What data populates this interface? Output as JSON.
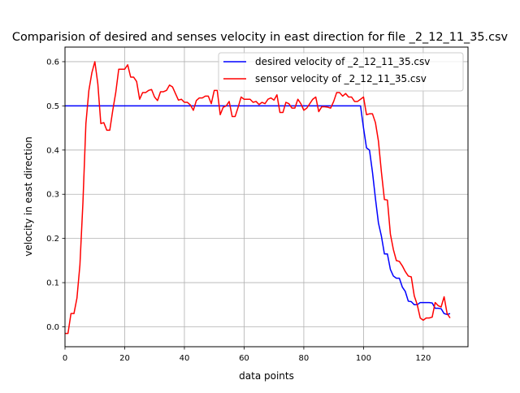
{
  "chart_data": {
    "type": "line",
    "title": "Comparision of desired and senses velocity in east direction for file _2_12_11_35.csv",
    "xlabel": "data points",
    "ylabel": "velocity in east direction",
    "xlim": [
      0,
      135
    ],
    "ylim": [
      -0.045,
      0.633
    ],
    "xticks": [
      0,
      20,
      40,
      60,
      80,
      100,
      120
    ],
    "yticks": [
      0.0,
      0.1,
      0.2,
      0.3,
      0.4,
      0.5,
      0.6
    ],
    "grid": true,
    "legend_position": "top-right",
    "series": [
      {
        "name": "desired velocity of _2_12_11_35.csv",
        "color": "#0000ff",
        "points": [
          [
            0,
            0.5
          ],
          [
            99,
            0.5
          ],
          [
            100,
            0.45
          ],
          [
            101,
            0.405
          ],
          [
            102,
            0.4
          ],
          [
            103,
            0.35
          ],
          [
            104,
            0.29
          ],
          [
            105,
            0.235
          ],
          [
            106,
            0.205
          ],
          [
            107,
            0.165
          ],
          [
            108,
            0.165
          ],
          [
            109,
            0.13
          ],
          [
            110,
            0.115
          ],
          [
            111,
            0.11
          ],
          [
            112,
            0.11
          ],
          [
            113,
            0.09
          ],
          [
            114,
            0.08
          ],
          [
            115,
            0.058
          ],
          [
            116,
            0.057
          ],
          [
            117,
            0.05
          ],
          [
            118,
            0.05
          ],
          [
            119,
            0.055
          ],
          [
            120,
            0.055
          ],
          [
            121,
            0.055
          ],
          [
            122,
            0.055
          ],
          [
            123,
            0.054
          ],
          [
            124,
            0.042
          ],
          [
            125,
            0.042
          ],
          [
            126,
            0.041
          ],
          [
            127,
            0.03
          ],
          [
            128,
            0.028
          ],
          [
            129,
            0.03
          ]
        ]
      },
      {
        "name": "sensor velocity of _2_12_11_35.csv",
        "color": "#ff0000",
        "points": [
          [
            0,
            -0.015
          ],
          [
            1,
            -0.015
          ],
          [
            2,
            0.03
          ],
          [
            3,
            0.03
          ],
          [
            4,
            0.065
          ],
          [
            5,
            0.14
          ],
          [
            6,
            0.28
          ],
          [
            7,
            0.46
          ],
          [
            8,
            0.535
          ],
          [
            9,
            0.575
          ],
          [
            10,
            0.6
          ],
          [
            11,
            0.55
          ],
          [
            12,
            0.46
          ],
          [
            13,
            0.462
          ],
          [
            14,
            0.445
          ],
          [
            15,
            0.445
          ],
          [
            16,
            0.49
          ],
          [
            17,
            0.53
          ],
          [
            18,
            0.583
          ],
          [
            19,
            0.583
          ],
          [
            20,
            0.583
          ],
          [
            21,
            0.593
          ],
          [
            22,
            0.565
          ],
          [
            23,
            0.565
          ],
          [
            24,
            0.555
          ],
          [
            25,
            0.515
          ],
          [
            26,
            0.53
          ],
          [
            27,
            0.53
          ],
          [
            28,
            0.535
          ],
          [
            29,
            0.537
          ],
          [
            30,
            0.52
          ],
          [
            31,
            0.512
          ],
          [
            32,
            0.532
          ],
          [
            33,
            0.532
          ],
          [
            34,
            0.535
          ],
          [
            35,
            0.547
          ],
          [
            36,
            0.543
          ],
          [
            37,
            0.528
          ],
          [
            38,
            0.513
          ],
          [
            39,
            0.515
          ],
          [
            40,
            0.508
          ],
          [
            41,
            0.508
          ],
          [
            42,
            0.502
          ],
          [
            43,
            0.49
          ],
          [
            44,
            0.512
          ],
          [
            45,
            0.518
          ],
          [
            46,
            0.518
          ],
          [
            47,
            0.522
          ],
          [
            48,
            0.522
          ],
          [
            49,
            0.505
          ],
          [
            50,
            0.535
          ],
          [
            51,
            0.535
          ],
          [
            52,
            0.48
          ],
          [
            53,
            0.497
          ],
          [
            54,
            0.5
          ],
          [
            55,
            0.51
          ],
          [
            56,
            0.476
          ],
          [
            57,
            0.476
          ],
          [
            58,
            0.497
          ],
          [
            59,
            0.52
          ],
          [
            60,
            0.515
          ],
          [
            61,
            0.515
          ],
          [
            62,
            0.515
          ],
          [
            63,
            0.508
          ],
          [
            64,
            0.51
          ],
          [
            65,
            0.503
          ],
          [
            66,
            0.508
          ],
          [
            67,
            0.505
          ],
          [
            68,
            0.515
          ],
          [
            69,
            0.518
          ],
          [
            70,
            0.513
          ],
          [
            71,
            0.525
          ],
          [
            72,
            0.485
          ],
          [
            73,
            0.485
          ],
          [
            74,
            0.508
          ],
          [
            75,
            0.505
          ],
          [
            76,
            0.495
          ],
          [
            77,
            0.495
          ],
          [
            78,
            0.515
          ],
          [
            79,
            0.505
          ],
          [
            80,
            0.49
          ],
          [
            81,
            0.495
          ],
          [
            82,
            0.505
          ],
          [
            83,
            0.515
          ],
          [
            84,
            0.52
          ],
          [
            85,
            0.487
          ],
          [
            86,
            0.498
          ],
          [
            87,
            0.498
          ],
          [
            88,
            0.497
          ],
          [
            89,
            0.495
          ],
          [
            90,
            0.51
          ],
          [
            91,
            0.53
          ],
          [
            92,
            0.53
          ],
          [
            93,
            0.522
          ],
          [
            94,
            0.528
          ],
          [
            95,
            0.52
          ],
          [
            96,
            0.52
          ],
          [
            97,
            0.51
          ],
          [
            98,
            0.51
          ],
          [
            99,
            0.515
          ],
          [
            100,
            0.52
          ],
          [
            101,
            0.48
          ],
          [
            102,
            0.482
          ],
          [
            103,
            0.482
          ],
          [
            104,
            0.462
          ],
          [
            105,
            0.42
          ],
          [
            106,
            0.35
          ],
          [
            107,
            0.288
          ],
          [
            108,
            0.287
          ],
          [
            109,
            0.21
          ],
          [
            110,
            0.175
          ],
          [
            111,
            0.15
          ],
          [
            112,
            0.148
          ],
          [
            113,
            0.138
          ],
          [
            114,
            0.125
          ],
          [
            115,
            0.115
          ],
          [
            116,
            0.113
          ],
          [
            117,
            0.07
          ],
          [
            118,
            0.05
          ],
          [
            119,
            0.02
          ],
          [
            120,
            0.015
          ],
          [
            121,
            0.02
          ],
          [
            122,
            0.02
          ],
          [
            123,
            0.022
          ],
          [
            124,
            0.055
          ],
          [
            125,
            0.048
          ],
          [
            126,
            0.045
          ],
          [
            127,
            0.068
          ],
          [
            128,
            0.03
          ],
          [
            129,
            0.02
          ]
        ]
      }
    ]
  }
}
